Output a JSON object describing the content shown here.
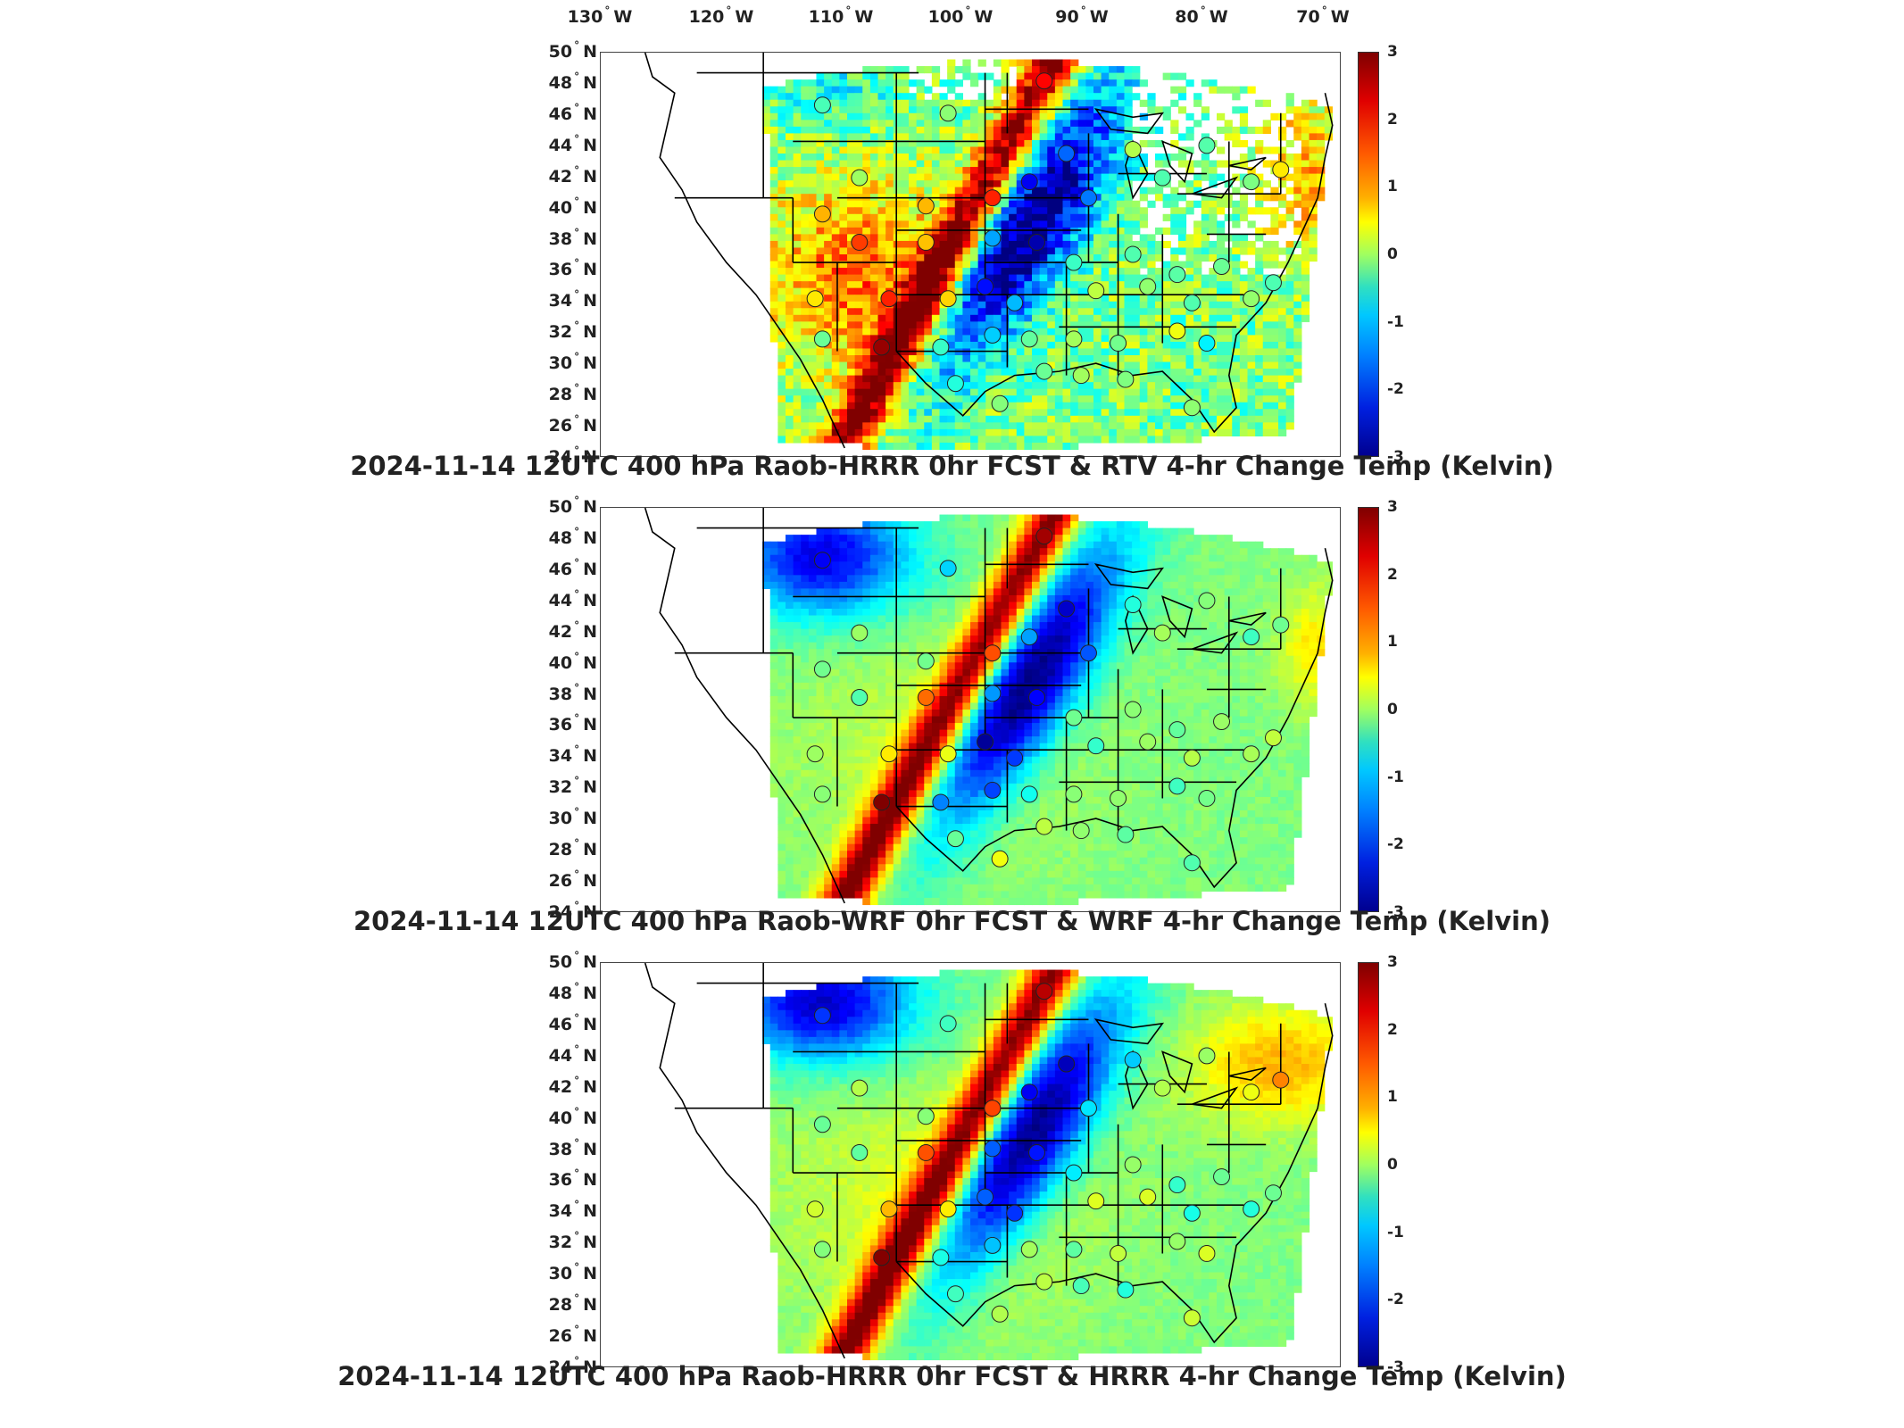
{
  "longitude_labels": [
    {
      "value": "130",
      "suffix": "W"
    },
    {
      "value": "120",
      "suffix": "W"
    },
    {
      "value": "110",
      "suffix": "W"
    },
    {
      "value": "100",
      "suffix": "W"
    },
    {
      "value": "90",
      "suffix": "W"
    },
    {
      "value": "80",
      "suffix": "W"
    },
    {
      "value": "70",
      "suffix": "W"
    }
  ],
  "latitude_labels": [
    {
      "value": "50",
      "suffix": "N"
    },
    {
      "value": "48",
      "suffix": "N"
    },
    {
      "value": "46",
      "suffix": "N"
    },
    {
      "value": "44",
      "suffix": "N"
    },
    {
      "value": "42",
      "suffix": "N"
    },
    {
      "value": "40",
      "suffix": "N"
    },
    {
      "value": "38",
      "suffix": "N"
    },
    {
      "value": "36",
      "suffix": "N"
    },
    {
      "value": "34",
      "suffix": "N"
    },
    {
      "value": "32",
      "suffix": "N"
    },
    {
      "value": "30",
      "suffix": "N"
    },
    {
      "value": "28",
      "suffix": "N"
    },
    {
      "value": "26",
      "suffix": "N"
    },
    {
      "value": "24",
      "suffix": "N"
    }
  ],
  "colorbar": {
    "ticks": [
      "3",
      "2",
      "1",
      "0",
      "-1",
      "-2",
      "-3"
    ],
    "range": [
      -3,
      3
    ],
    "colormap": "jet",
    "unit_hint": "Kelvin"
  },
  "panels": [
    {
      "title": "2024-11-14 12UTC 400 hPa Raob-HRRR 0hr FCST & RTV 4-hr Change Temp (Kelvin)",
      "field": "RTV 4-hr Change",
      "has_missing_data": true
    },
    {
      "title": "2024-11-14 12UTC 400 hPa Raob-WRF 0hr FCST & WRF 4-hr Change Temp (Kelvin)",
      "field": "WRF 4-hr Change",
      "has_missing_data": false
    },
    {
      "title": "2024-11-14 12UTC 400 hPa Raob-HRRR 0hr FCST & HRRR 4-hr Change Temp (Kelvin)",
      "field": "HRRR 4-hr Change",
      "has_missing_data": false
    }
  ],
  "colors": {
    "background": "#ffffff",
    "boundary": "#000000",
    "warm_band": "#c00000",
    "cold_band": "#0010b0"
  }
}
